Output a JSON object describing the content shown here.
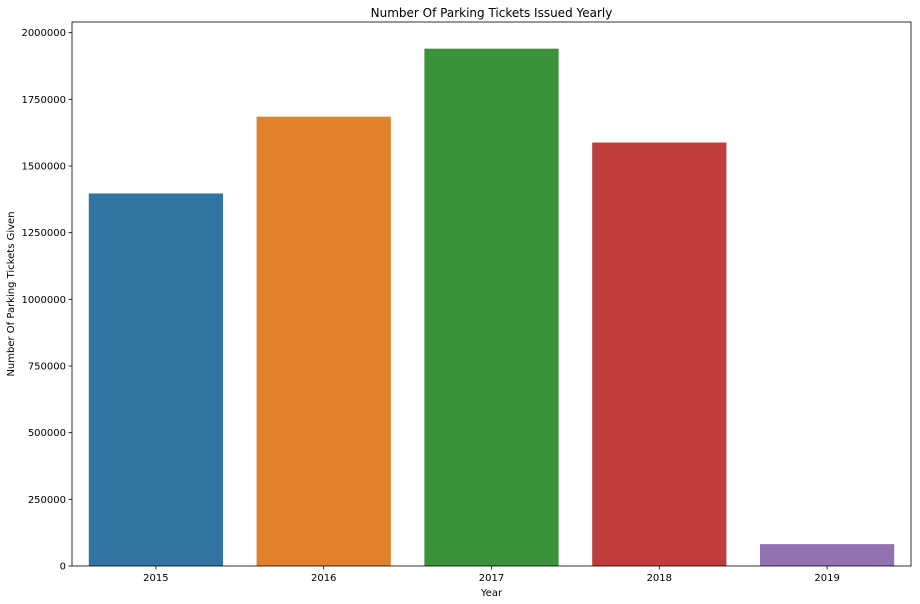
{
  "chart_data": {
    "type": "bar",
    "title": "Number Of Parking Tickets Issued Yearly",
    "xlabel": "Year",
    "ylabel": "Number Of Parking Tickets Given",
    "categories": [
      "2015",
      "2016",
      "2017",
      "2018",
      "2019"
    ],
    "values": [
      1397000,
      1685000,
      1940000,
      1588000,
      82000
    ],
    "colors": [
      "#3274a1",
      "#e1812c",
      "#3a923a",
      "#c03d3e",
      "#9372b2"
    ],
    "ylim": [
      0,
      2040000
    ],
    "yticks": [
      0,
      250000,
      500000,
      750000,
      1000000,
      1250000,
      1500000,
      1750000,
      2000000
    ],
    "ytick_labels": [
      "0",
      "250000",
      "500000",
      "750000",
      "1000000",
      "1250000",
      "1500000",
      "1750000",
      "2000000"
    ],
    "grid": false,
    "legend": "none"
  }
}
